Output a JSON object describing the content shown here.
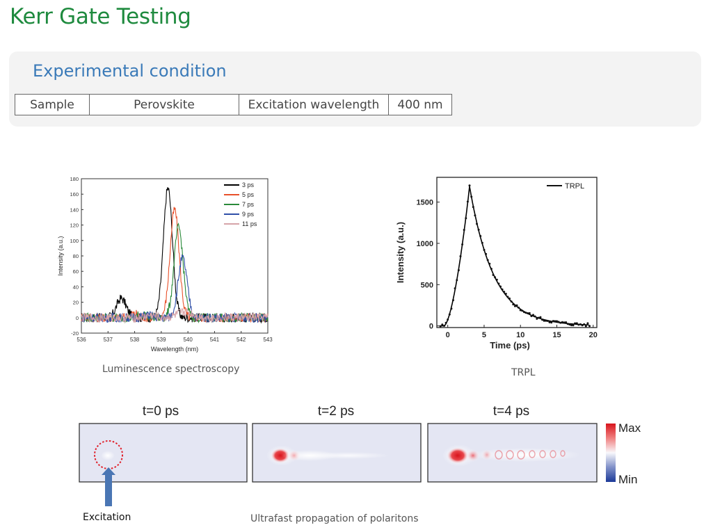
{
  "page": {
    "title": "Kerr Gate Testing"
  },
  "condition": {
    "title": "Experimental condition",
    "sample_label": "Sample",
    "sample_value": "Perovskite",
    "excitation_label": "Excitation wavelength",
    "excitation_value": "400 nm"
  },
  "captions": {
    "luminescence": "Luminescence spectroscopy",
    "trpl": "TRPL",
    "excitation": "Excitation",
    "polaritons": "Ultrafast propagation of polaritons"
  },
  "polariton_panels": [
    "t=0 ps",
    "t=2 ps",
    "t=4 ps"
  ],
  "colorbar": {
    "max_label": "Max",
    "min_label": "Min"
  },
  "chart_data": [
    {
      "type": "line",
      "title": "Luminescence spectroscopy",
      "xlabel": "Wavelength (nm)",
      "ylabel": "Intensity (a.u.)",
      "xlim": [
        536,
        543
      ],
      "ylim": [
        -20,
        180
      ],
      "xticks": [
        "536",
        "537",
        "538",
        "539",
        "540",
        "541",
        "542",
        "543"
      ],
      "yticks": [
        "-20",
        "0",
        "20",
        "40",
        "60",
        "80",
        "100",
        "120",
        "140",
        "160",
        "180"
      ],
      "legend_position": "top-right",
      "series": [
        {
          "name": "3 ps",
          "color": "#000000",
          "peak_x": 539.25,
          "peak_y": 168,
          "width": 0.17,
          "side_x": 537.5,
          "side_y": 25
        },
        {
          "name": "5 ps",
          "color": "#e8502a",
          "peak_x": 539.5,
          "peak_y": 140,
          "width": 0.17,
          "side_x": 538.0,
          "side_y": 5
        },
        {
          "name": "7 ps",
          "color": "#2a8a3a",
          "peak_x": 539.65,
          "peak_y": 117,
          "width": 0.17,
          "side_x": 538.3,
          "side_y": 4
        },
        {
          "name": "9 ps",
          "color": "#2f4fa8",
          "peak_x": 539.8,
          "peak_y": 77,
          "width": 0.17,
          "side_x": 538.5,
          "side_y": 3
        },
        {
          "name": "11 ps",
          "color": "#d6a3a8",
          "peak_x": 539.9,
          "peak_y": 7,
          "width": 0.3,
          "side_x": 538.6,
          "side_y": 3
        }
      ]
    },
    {
      "type": "line",
      "title": "TRPL",
      "xlabel": "Time (ps)",
      "ylabel": "Intensity (a.u.)",
      "xlim": [
        -1.5,
        20.5
      ],
      "ylim": [
        -20,
        1800
      ],
      "xticks": [
        "0",
        "5",
        "10",
        "15",
        "20"
      ],
      "yticks": [
        "0",
        "500",
        "1000",
        "1500"
      ],
      "legend_position": "top-right",
      "series": [
        {
          "name": "TRPL",
          "color": "#000000",
          "rise_start": -0.5,
          "peak_t": 3,
          "peak": 1690,
          "tau": 3.3,
          "t_end": 19.5
        }
      ]
    }
  ]
}
